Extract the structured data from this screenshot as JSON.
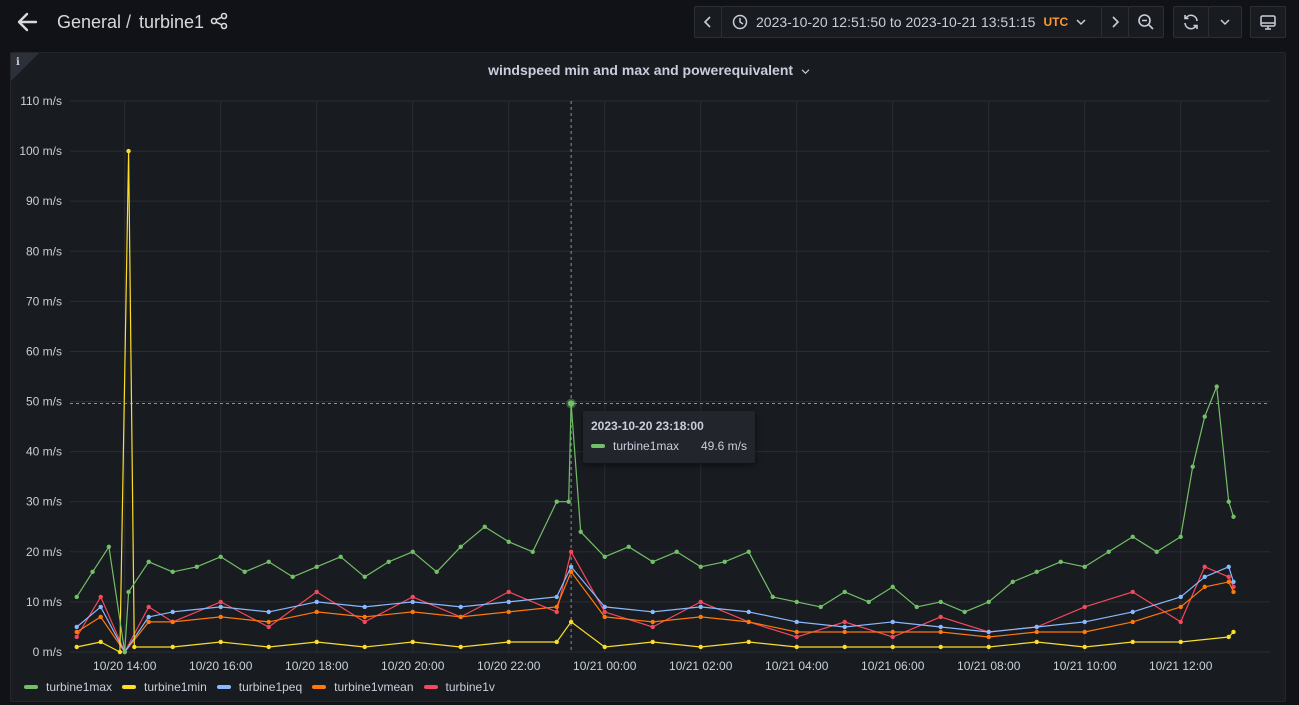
{
  "header": {
    "folder": "General",
    "separator": "/",
    "dashboard": "turbine1"
  },
  "time_picker": {
    "range": "2023-10-20 12:51:50 to 2023-10-21 13:51:15",
    "timezone": "UTC"
  },
  "icons": {
    "back": "arrow-left-icon",
    "share": "share-icon",
    "prev": "chevron-left-icon",
    "next": "chevron-right-icon",
    "clock": "clock-icon",
    "zoom_out": "zoom-out-icon",
    "refresh": "refresh-icon",
    "refresh_menu": "chevron-down-icon",
    "tv_mode": "monitor-icon",
    "panel_info": "info-icon"
  },
  "panel": {
    "title": "windspeed min and max and powerequivalent"
  },
  "tooltip": {
    "time": "2023-10-20 23:18:00",
    "series": "turbine1max",
    "value": "49.6 m/s"
  },
  "chart_data": {
    "type": "line",
    "title": "windspeed min and max and powerequivalent",
    "y_unit": "m/s",
    "ylim": [
      0,
      110
    ],
    "y_ticks": [
      "0 m/s",
      "10 m/s",
      "20 m/s",
      "30 m/s",
      "40 m/s",
      "50 m/s",
      "60 m/s",
      "70 m/s",
      "80 m/s",
      "90 m/s",
      "100 m/s",
      "110 m/s"
    ],
    "x_ticks": [
      "10/20 14:00",
      "10/20 16:00",
      "10/20 18:00",
      "10/20 20:00",
      "10/20 22:00",
      "10/21 00:00",
      "10/21 02:00",
      "10/21 04:00",
      "10/21 06:00",
      "10/21 08:00",
      "10/21 10:00",
      "10/21 12:00"
    ],
    "grid": true,
    "legend_position": "bottom-left",
    "hover": {
      "x": 23.3,
      "y": 49.6
    },
    "series": [
      {
        "name": "turbine1max",
        "color": "#73bf69",
        "x": [
          13.0,
          13.33,
          13.67,
          14.0,
          14.08,
          14.5,
          15.0,
          15.5,
          16.0,
          16.5,
          17.0,
          17.5,
          18.0,
          18.5,
          19.0,
          19.5,
          20.0,
          20.5,
          21.0,
          21.5,
          22.0,
          22.5,
          23.0,
          23.25,
          23.3,
          23.5,
          24.0,
          24.5,
          25.0,
          25.5,
          26.0,
          26.5,
          27.0,
          27.5,
          28.0,
          28.5,
          29.0,
          29.5,
          30.0,
          30.5,
          31.0,
          31.5,
          32.0,
          32.5,
          33.0,
          33.5,
          34.0,
          34.5,
          35.0,
          35.5,
          36.0,
          36.25,
          36.5,
          36.75,
          37.0,
          37.1
        ],
        "y": [
          11,
          16,
          21,
          0,
          12,
          18,
          16,
          17,
          19,
          16,
          18,
          15,
          17,
          19,
          15,
          18,
          20,
          16,
          21,
          25,
          22,
          20,
          30,
          30,
          49.6,
          24,
          19,
          21,
          18,
          20,
          17,
          18,
          20,
          11,
          10,
          9,
          12,
          10,
          13,
          9,
          10,
          8,
          10,
          14,
          16,
          18,
          17,
          20,
          23,
          20,
          23,
          37,
          47,
          53,
          30,
          27
        ]
      },
      {
        "name": "turbine1min",
        "color": "#fade2a",
        "x": [
          13.0,
          13.5,
          13.9,
          14.08,
          14.2,
          15.0,
          16.0,
          17.0,
          18.0,
          19.0,
          20.0,
          21.0,
          22.0,
          23.0,
          23.3,
          24.0,
          25.0,
          26.0,
          27.0,
          28.0,
          29.0,
          30.0,
          31.0,
          32.0,
          33.0,
          34.0,
          35.0,
          36.0,
          37.0,
          37.1
        ],
        "y": [
          1,
          2,
          0,
          100,
          1,
          1,
          2,
          1,
          2,
          1,
          2,
          1,
          2,
          2,
          6,
          1,
          2,
          1,
          2,
          1,
          1,
          1,
          1,
          1,
          2,
          1,
          2,
          2,
          3,
          4
        ]
      },
      {
        "name": "turbine1peq",
        "color": "#8ab8ff",
        "x": [
          13.0,
          13.5,
          14.0,
          14.5,
          15.0,
          16.0,
          17.0,
          18.0,
          19.0,
          20.0,
          21.0,
          22.0,
          23.0,
          23.3,
          24.0,
          25.0,
          26.0,
          27.0,
          28.0,
          29.0,
          30.0,
          31.0,
          32.0,
          33.0,
          34.0,
          35.0,
          36.0,
          36.5,
          37.0,
          37.1
        ],
        "y": [
          5,
          9,
          0,
          7,
          8,
          9,
          8,
          10,
          9,
          10,
          9,
          10,
          11,
          17,
          9,
          8,
          9,
          8,
          6,
          5,
          6,
          5,
          4,
          5,
          6,
          8,
          11,
          15,
          17,
          14
        ]
      },
      {
        "name": "turbine1vmean",
        "color": "#ff780a",
        "x": [
          13.0,
          13.5,
          14.0,
          14.5,
          15.0,
          16.0,
          17.0,
          18.0,
          19.0,
          20.0,
          21.0,
          22.0,
          23.0,
          23.3,
          24.0,
          25.0,
          26.0,
          27.0,
          28.0,
          29.0,
          30.0,
          31.0,
          32.0,
          33.0,
          34.0,
          35.0,
          36.0,
          36.5,
          37.0,
          37.1
        ],
        "y": [
          4,
          7,
          0,
          6,
          6,
          7,
          6,
          8,
          7,
          8,
          7,
          8,
          9,
          16,
          7,
          6,
          7,
          6,
          4,
          4,
          4,
          4,
          3,
          4,
          4,
          6,
          9,
          13,
          14,
          12
        ]
      },
      {
        "name": "turbine1v",
        "color": "#f2495c",
        "x": [
          13.0,
          13.5,
          14.0,
          14.5,
          15.0,
          16.0,
          17.0,
          18.0,
          19.0,
          20.0,
          21.0,
          22.0,
          23.0,
          23.3,
          24.0,
          25.0,
          26.0,
          27.0,
          28.0,
          29.0,
          30.0,
          31.0,
          32.0,
          33.0,
          34.0,
          35.0,
          36.0,
          36.5,
          37.0,
          37.1
        ],
        "y": [
          3,
          11,
          0,
          9,
          6,
          10,
          5,
          12,
          6,
          11,
          7,
          12,
          8,
          20,
          8,
          5,
          10,
          6,
          3,
          6,
          3,
          7,
          4,
          5,
          9,
          12,
          6,
          17,
          15,
          13
        ]
      }
    ]
  }
}
